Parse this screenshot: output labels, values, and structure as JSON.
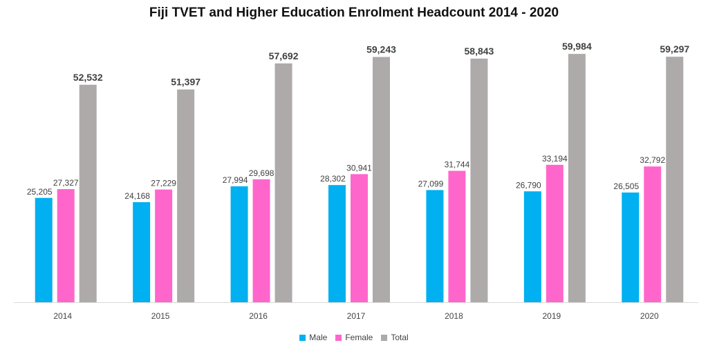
{
  "chart_data": {
    "type": "bar",
    "title": "Fiji TVET and Higher Education Enrolment Headcount 2014 - 2020",
    "xlabel": "",
    "ylabel": "",
    "categories": [
      "2014",
      "2015",
      "2016",
      "2017",
      "2018",
      "2019",
      "2020"
    ],
    "series": [
      {
        "name": "Male",
        "color": "#00B0F0",
        "values": [
          25205,
          24168,
          27994,
          28302,
          27099,
          26790,
          26505
        ],
        "labels": [
          "25,205",
          "24,168",
          "27,994",
          "28,302",
          "27,099",
          "26,790",
          "26,505"
        ]
      },
      {
        "name": "Female",
        "color": "#FF66CC",
        "values": [
          27327,
          27229,
          29698,
          30941,
          31744,
          33194,
          32792
        ],
        "labels": [
          "27,327",
          "27,229",
          "29,698",
          "30,941",
          "31,744",
          "33,194",
          "32,792"
        ]
      },
      {
        "name": "Total",
        "color": "#AEAAAA",
        "values": [
          52532,
          51397,
          57692,
          59243,
          58843,
          59984,
          59297
        ],
        "labels": [
          "52,532",
          "51,397",
          "57,692",
          "59,243",
          "58,843",
          "59,984",
          "59,297"
        ]
      }
    ],
    "ylim": [
      0,
      60000
    ],
    "grid": false,
    "legend_position": "bottom"
  }
}
